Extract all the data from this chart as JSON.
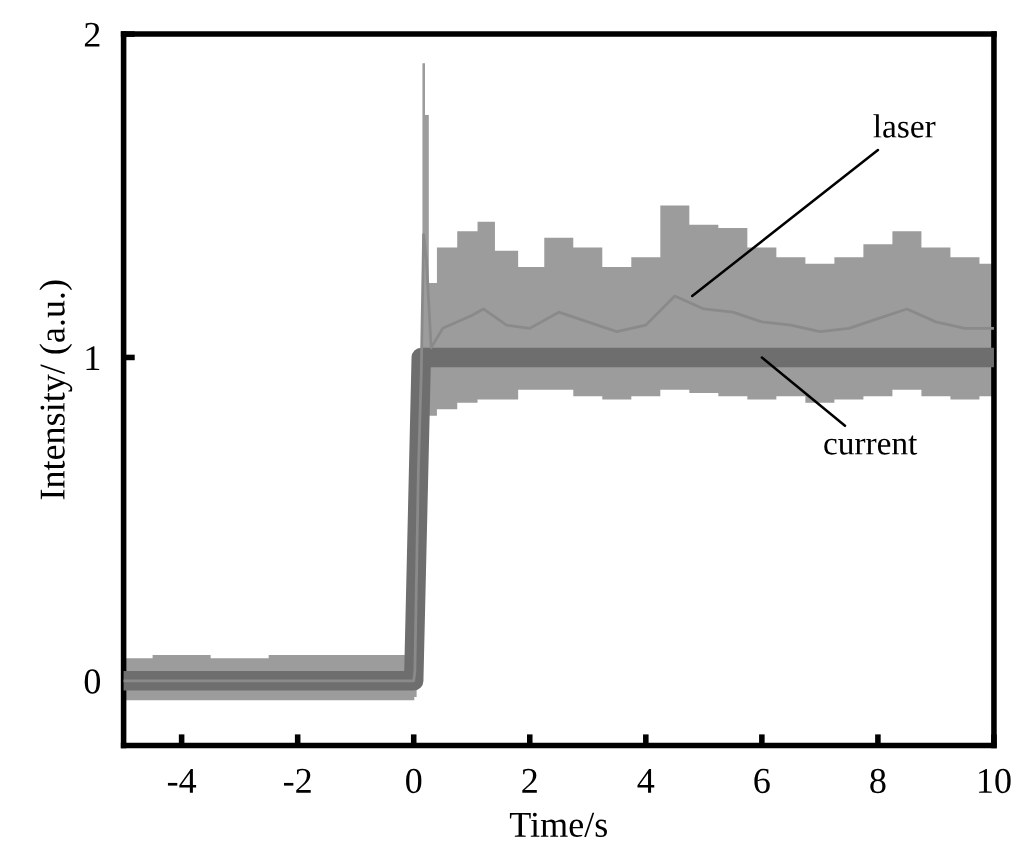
{
  "chart_data": {
    "type": "line",
    "xlabel": "Time/s",
    "ylabel": "Intensity/ (a.u.)",
    "xlim": [
      -5,
      10
    ],
    "ylim": [
      -0.2,
      2
    ],
    "xticks": [
      -4,
      -2,
      0,
      2,
      4,
      6,
      8,
      10
    ],
    "yticks": [
      0,
      1,
      2
    ],
    "grid": false,
    "legend": false,
    "marker": "none",
    "line_style": "solid",
    "series": [
      {
        "color": "#8a8a8a",
        "x": [
          -5,
          -4,
          -3,
          -2,
          -1,
          0,
          0.02,
          0.08,
          0.13,
          0.17,
          0.22,
          0.3,
          0.5,
          1,
          1.2,
          1.6,
          2,
          2.5,
          3,
          3.5,
          4,
          4.5,
          5,
          5.5,
          6,
          6.5,
          7,
          7.5,
          8,
          8.5,
          9,
          9.5,
          10
        ],
        "values": [
          0.0,
          0.0,
          0.0,
          0.0,
          0.0,
          0.0,
          0.03,
          0.65,
          0.95,
          1.38,
          1.3,
          1.03,
          1.09,
          1.13,
          1.15,
          1.1,
          1.09,
          1.14,
          1.11,
          1.08,
          1.1,
          1.19,
          1.15,
          1.14,
          1.11,
          1.1,
          1.08,
          1.09,
          1.12,
          1.15,
          1.11,
          1.09,
          1.09
        ],
        "upper": [
          0.07,
          0.08,
          0.07,
          0.08,
          0.08,
          0.08,
          0.1,
          0.8,
          1.0,
          1.91,
          1.75,
          1.23,
          1.34,
          1.39,
          1.42,
          1.33,
          1.28,
          1.37,
          1.34,
          1.28,
          1.31,
          1.47,
          1.41,
          1.4,
          1.34,
          1.31,
          1.29,
          1.31,
          1.35,
          1.39,
          1.34,
          1.31,
          1.29
        ],
        "lower": [
          -0.06,
          -0.06,
          -0.06,
          -0.06,
          -0.06,
          -0.06,
          -0.05,
          0.5,
          0.9,
          0.85,
          0.85,
          0.82,
          0.84,
          0.86,
          0.87,
          0.87,
          0.9,
          0.9,
          0.88,
          0.87,
          0.88,
          0.9,
          0.89,
          0.88,
          0.87,
          0.88,
          0.86,
          0.87,
          0.88,
          0.9,
          0.88,
          0.87,
          0.88
        ]
      },
      {
        "color": "#6e6e6e",
        "x": [
          -5,
          0,
          0.13,
          10
        ],
        "values": [
          0,
          0,
          1,
          1
        ]
      }
    ],
    "annotations": [
      {
        "text": "laser",
        "x": 4.8,
        "y": 1.19
      },
      {
        "text": "current",
        "x": 6.0,
        "y": 1.0
      }
    ]
  }
}
